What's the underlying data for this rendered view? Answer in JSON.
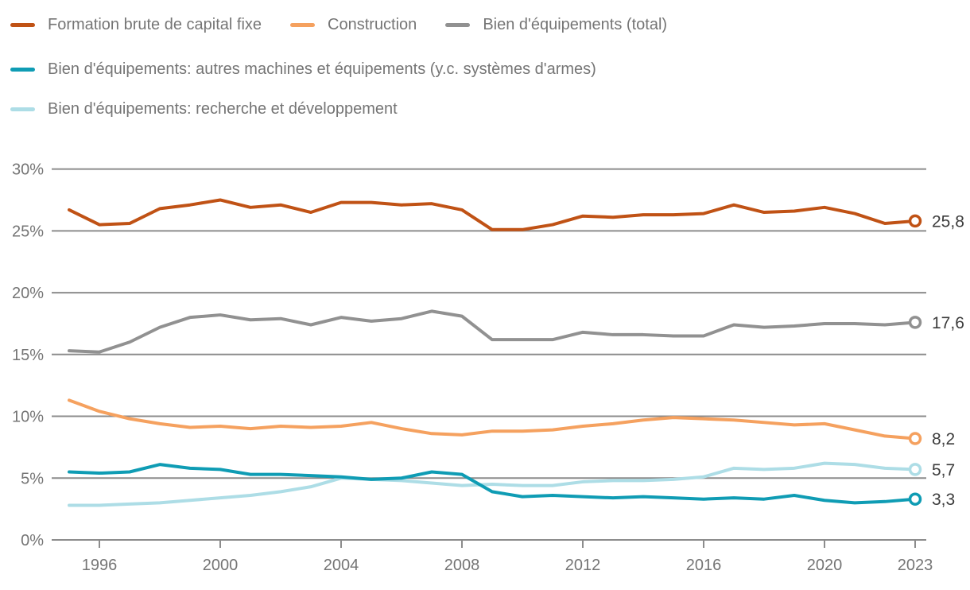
{
  "chart_data": {
    "type": "line",
    "title": "",
    "xlabel": "",
    "ylabel": "",
    "ylim": [
      0,
      30
    ],
    "grid": true,
    "legend_position": "top-left",
    "decimal_separator": ",",
    "x": [
      1995,
      1996,
      1997,
      1998,
      1999,
      2000,
      2001,
      2002,
      2003,
      2004,
      2005,
      2006,
      2007,
      2008,
      2009,
      2010,
      2011,
      2012,
      2013,
      2014,
      2015,
      2016,
      2017,
      2018,
      2019,
      2020,
      2021,
      2022,
      2023
    ],
    "x_tick_years": [
      1996,
      2000,
      2004,
      2008,
      2012,
      2016,
      2020,
      2023
    ],
    "x_tick_labels": [
      "1996",
      "2000",
      "2004",
      "2008",
      "2012",
      "2016",
      "2020",
      "2023"
    ],
    "y_tick_values": [
      0,
      5,
      10,
      15,
      20,
      25,
      30
    ],
    "y_tick_labels": [
      "0%",
      "5%",
      "10%",
      "15%",
      "20%",
      "25%",
      "30%"
    ],
    "series": [
      {
        "name": "Formation brute de capital fixe",
        "color": "#c05215",
        "end_label": "25,8",
        "end_value": 25.8,
        "values": [
          26.7,
          25.5,
          25.6,
          26.8,
          27.1,
          27.5,
          26.9,
          27.1,
          26.5,
          27.3,
          27.3,
          27.1,
          27.2,
          26.7,
          25.1,
          25.1,
          25.5,
          26.2,
          26.1,
          26.3,
          26.3,
          26.4,
          27.1,
          26.5,
          26.6,
          26.9,
          26.4,
          25.6,
          25.8
        ]
      },
      {
        "name": "Construction",
        "color": "#f5a15f",
        "end_label": "8,2",
        "end_value": 8.2,
        "values": [
          11.3,
          10.4,
          9.8,
          9.4,
          9.1,
          9.2,
          9.0,
          9.2,
          9.1,
          9.2,
          9.5,
          9.0,
          8.6,
          8.5,
          8.8,
          8.8,
          8.9,
          9.2,
          9.4,
          9.7,
          9.9,
          9.8,
          9.7,
          9.5,
          9.3,
          9.4,
          8.9,
          8.4,
          8.2
        ]
      },
      {
        "name": "Bien d'équipements (total)",
        "color": "#919191",
        "end_label": "17,6",
        "end_value": 17.6,
        "values": [
          15.3,
          15.2,
          16.0,
          17.2,
          18.0,
          18.2,
          17.8,
          17.9,
          17.4,
          18.0,
          17.7,
          17.9,
          18.5,
          18.1,
          16.2,
          16.2,
          16.2,
          16.8,
          16.6,
          16.6,
          16.5,
          16.5,
          17.4,
          17.2,
          17.3,
          17.5,
          17.5,
          17.4,
          17.6
        ]
      },
      {
        "name": "Bien d'équipements: autres machines et équipements (y.c. systèmes d'armes)",
        "color": "#0f9cb4",
        "end_label": "3,3",
        "end_value": 3.3,
        "values": [
          5.5,
          5.4,
          5.5,
          6.1,
          5.8,
          5.7,
          5.3,
          5.3,
          5.2,
          5.1,
          4.9,
          5.0,
          5.5,
          5.3,
          3.9,
          3.5,
          3.6,
          3.5,
          3.4,
          3.5,
          3.4,
          3.3,
          3.4,
          3.3,
          3.6,
          3.2,
          3.0,
          3.1,
          3.3
        ]
      },
      {
        "name": "Bien d'équipements: recherche et développement",
        "color": "#addde6",
        "end_label": "5,7",
        "end_value": 5.7,
        "values": [
          2.8,
          2.8,
          2.9,
          3.0,
          3.2,
          3.4,
          3.6,
          3.9,
          4.3,
          5.0,
          4.9,
          4.8,
          4.6,
          4.4,
          4.5,
          4.4,
          4.4,
          4.7,
          4.8,
          4.8,
          4.9,
          5.1,
          5.8,
          5.7,
          5.8,
          6.2,
          6.1,
          5.8,
          5.7
        ]
      }
    ],
    "colors": {
      "gridline": "#8c8c8c",
      "axis_text": "#757575",
      "end_label_text": "#3c3c3c",
      "background": "#ffffff"
    }
  }
}
